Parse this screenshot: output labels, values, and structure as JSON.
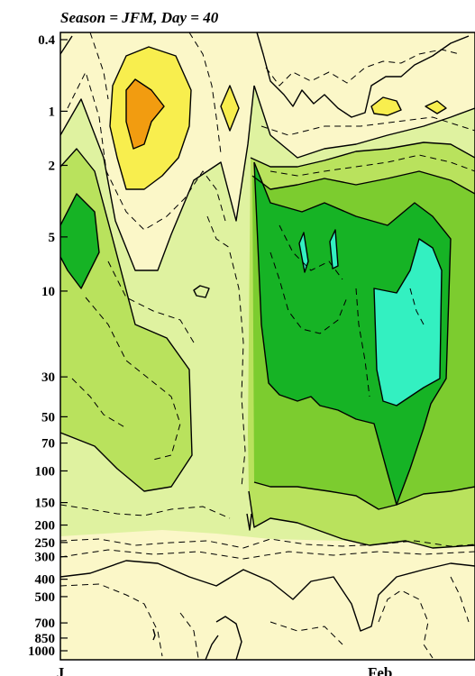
{
  "title": "Season = JFM, Day =  40",
  "colors": {
    "level_pale": "#fbf7c8",
    "level_lightgreen": "#dff2a0",
    "level_green": "#b9e25d",
    "level_midgreen": "#7ccc2f",
    "level_darkgreen": "#16b325",
    "level_cyan": "#33f0c1",
    "level_yellow": "#f8ee4e",
    "level_gold": "#f5c800",
    "level_orange": "#f29c10"
  },
  "chart_data": {
    "type": "contour",
    "title": "Season = JFM, Day =  40",
    "yaxis": {
      "scale": "log-pressure",
      "inverted": true,
      "range": [
        0.4,
        1000
      ],
      "ticks": [
        "0.4",
        "1",
        "2",
        "5",
        "10",
        "30",
        "50",
        "70",
        "100",
        "150",
        "200",
        "250",
        "300",
        "400",
        "500",
        "700",
        "850",
        "1000"
      ]
    },
    "xaxis": {
      "ticks": [
        "Jan",
        "Feb"
      ],
      "visible_labels": [
        "J",
        "Feb"
      ]
    },
    "fill_levels": [
      "pale",
      "lightgreen",
      "green",
      "midgreen",
      "darkgreen",
      "cyan",
      "yellow",
      "gold",
      "orange"
    ],
    "grid": false,
    "legend": "none"
  }
}
